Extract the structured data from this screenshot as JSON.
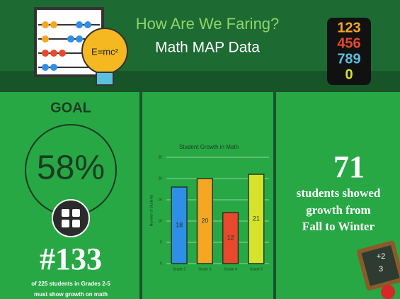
{
  "header": {
    "title": "How Are We Faring?",
    "subtitle": "Math MAP Data",
    "bulb_text": "E=mc²",
    "digits": [
      "123",
      "456",
      "789",
      "0"
    ]
  },
  "goal": {
    "heading": "GOAL",
    "percent": "58%",
    "number": "#133",
    "note": [
      "of 225 students in Grades 2-5",
      "must show growth on math"
    ]
  },
  "growth": {
    "number": "71",
    "text": [
      "students showed",
      "growth from",
      "Fall to Winter"
    ],
    "chalkboard": [
      "+2",
      "3"
    ]
  },
  "chart_data": {
    "type": "bar",
    "title": "Student Growth in Math",
    "y_label": "Number of Students",
    "categories": [
      "Grade 2",
      "Grade 3",
      "Grade 4",
      "Grade 5"
    ],
    "values": [
      18,
      20,
      12,
      21
    ],
    "colors": [
      "#2f8fe6",
      "#f5a623",
      "#e8482b",
      "#d6e22c"
    ],
    "ylim": [
      0,
      25
    ],
    "yticks": [
      0,
      5,
      10,
      15,
      20,
      25
    ],
    "grid": true
  }
}
